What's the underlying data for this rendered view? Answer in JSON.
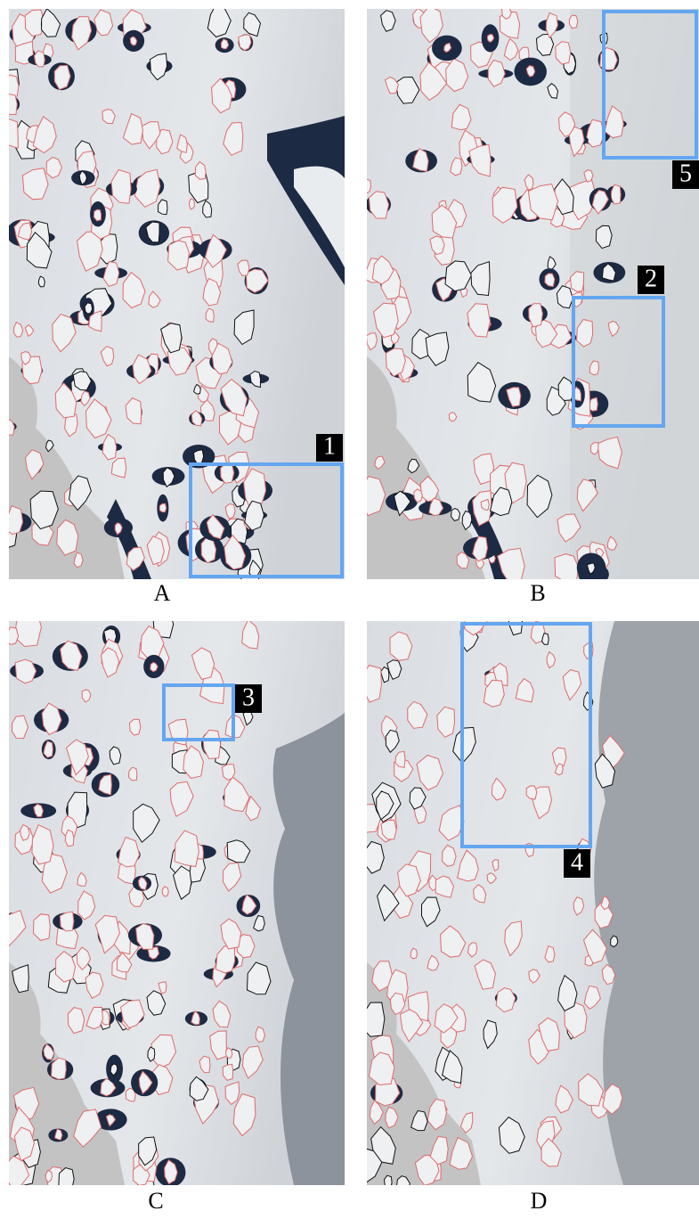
{
  "panels": [
    {
      "label": "A"
    },
    {
      "label": "B"
    },
    {
      "label": "C"
    },
    {
      "label": "D"
    }
  ],
  "boxes": [
    {
      "label": "1"
    },
    {
      "label": "2"
    },
    {
      "label": "3"
    },
    {
      "label": "4"
    },
    {
      "label": "5"
    }
  ]
}
